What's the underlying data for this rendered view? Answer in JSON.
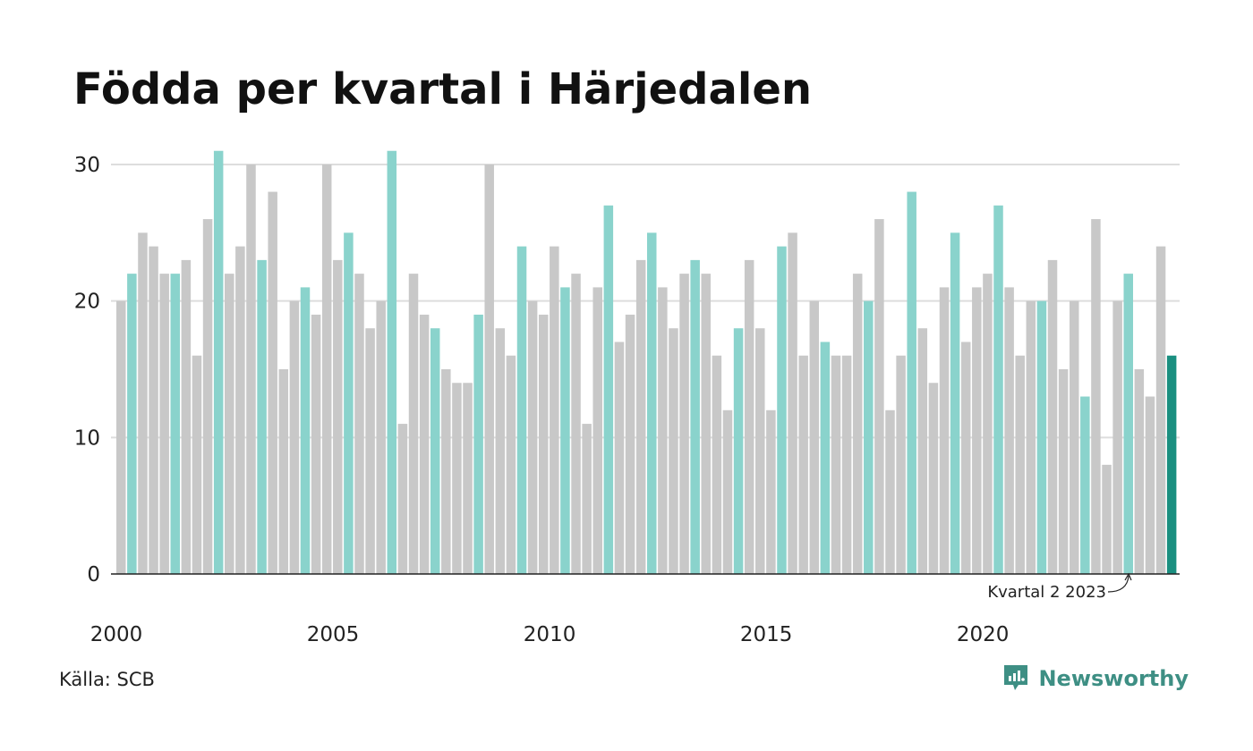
{
  "chart_data": {
    "type": "bar",
    "title": "Födda per kvartal i Härjedalen",
    "xlabel": "",
    "ylabel": "",
    "ylim": [
      0,
      32
    ],
    "yticks": [
      0,
      10,
      20,
      30
    ],
    "grid": true,
    "x_tick_labels": [
      "2000",
      "2005",
      "2010",
      "2015",
      "2020"
    ],
    "start_year": 2000,
    "highlight_quarter": 2,
    "values": [
      20,
      22,
      25,
      24,
      22,
      22,
      23,
      16,
      26,
      31,
      22,
      24,
      30,
      23,
      28,
      15,
      20,
      21,
      19,
      30,
      23,
      25,
      22,
      18,
      20,
      31,
      11,
      22,
      19,
      18,
      15,
      14,
      14,
      19,
      30,
      18,
      16,
      24,
      20,
      19,
      24,
      21,
      22,
      11,
      21,
      27,
      17,
      19,
      23,
      25,
      21,
      18,
      22,
      23,
      22,
      16,
      12,
      18,
      23,
      18,
      12,
      24,
      25,
      16,
      20,
      17,
      16,
      16,
      22,
      20,
      26,
      12,
      16,
      28,
      18,
      14,
      21,
      25,
      17,
      21,
      22,
      27,
      21,
      16,
      20,
      20,
      23,
      15,
      20,
      13,
      26,
      8,
      20,
      22,
      15,
      13,
      24,
      16
    ],
    "colors": {
      "default": "#c8c8c8",
      "highlight": "#8ad3cc",
      "latest": "#1a8f80",
      "grid": "#dddddd",
      "axis": "#222222"
    },
    "annotation": "Kvartal 2 2023"
  },
  "footer": {
    "source": "Källa: SCB",
    "brand": "Newsworthy",
    "brand_icon": "newsworthy-logo-icon"
  }
}
